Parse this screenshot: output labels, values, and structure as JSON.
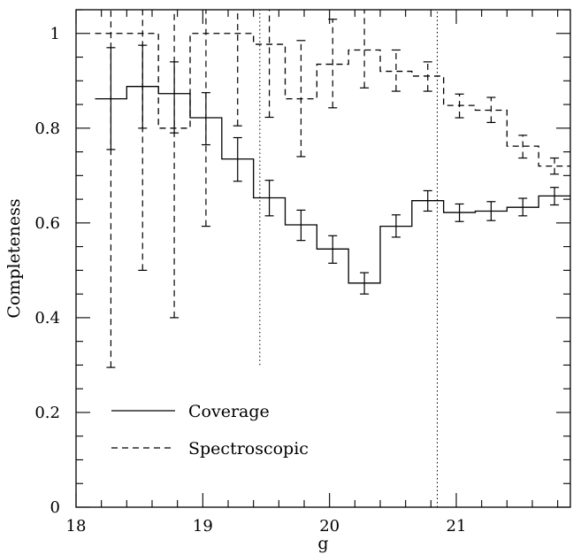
{
  "chart_data": {
    "type": "line",
    "xlabel": "g",
    "ylabel": "Completeness",
    "xlim": [
      18,
      21.9
    ],
    "ylim": [
      0,
      1.05
    ],
    "xticks": [
      18,
      19,
      20,
      21
    ],
    "yticks": [
      0,
      0.2,
      0.4,
      0.6,
      0.8,
      1
    ],
    "legend_position": "bottom-left",
    "grid": false,
    "vlines": [
      {
        "x": 19.45,
        "y_from": 0.3,
        "y_to": 1.05,
        "style": "dotted"
      },
      {
        "x": 20.85,
        "y_from": 0,
        "y_to": 1.05,
        "style": "dotted"
      }
    ],
    "series": [
      {
        "name": "Coverage",
        "style": "solid",
        "bin_edges": [
          18.15,
          18.4,
          18.65,
          18.9,
          19.15,
          19.4,
          19.65,
          19.9,
          20.15,
          20.4,
          20.65,
          20.9,
          21.15,
          21.4,
          21.65,
          21.9
        ],
        "x": [
          18.275,
          18.525,
          18.775,
          19.025,
          19.275,
          19.525,
          19.775,
          20.025,
          20.275,
          20.525,
          20.775,
          21.025,
          21.275,
          21.525,
          21.775
        ],
        "values": [
          0.862,
          0.888,
          0.873,
          0.822,
          0.735,
          0.653,
          0.596,
          0.545,
          0.473,
          0.593,
          0.647,
          0.622,
          0.625,
          0.633,
          0.657
        ],
        "err_low": [
          0.755,
          0.8,
          0.79,
          0.765,
          0.688,
          0.615,
          0.563,
          0.515,
          0.45,
          0.57,
          0.625,
          0.603,
          0.605,
          0.615,
          0.638
        ],
        "err_high": [
          0.97,
          0.975,
          0.94,
          0.875,
          0.78,
          0.69,
          0.627,
          0.573,
          0.495,
          0.617,
          0.668,
          0.64,
          0.645,
          0.652,
          0.675
        ]
      },
      {
        "name": "Spectroscopic",
        "style": "dashed",
        "bin_edges": [
          18.15,
          18.4,
          18.65,
          18.9,
          19.15,
          19.4,
          19.65,
          19.9,
          20.15,
          20.4,
          20.65,
          20.9,
          21.15,
          21.4,
          21.65,
          21.9
        ],
        "x": [
          18.275,
          18.525,
          18.775,
          19.025,
          19.275,
          19.525,
          19.775,
          20.025,
          20.275,
          20.525,
          20.775,
          21.025,
          21.275,
          21.525,
          21.775
        ],
        "values": [
          1.0,
          1.0,
          0.8,
          1.0,
          1.0,
          0.977,
          0.862,
          0.935,
          0.965,
          0.92,
          0.91,
          0.848,
          0.838,
          0.762,
          0.72
        ],
        "err_low": [
          0.295,
          0.5,
          0.4,
          0.593,
          0.805,
          0.823,
          0.74,
          0.843,
          0.885,
          0.878,
          0.878,
          0.822,
          0.812,
          0.737,
          0.703
        ],
        "err_high": [
          1.05,
          1.05,
          1.05,
          1.05,
          1.05,
          1.05,
          0.985,
          1.03,
          1.05,
          0.965,
          0.94,
          0.872,
          0.865,
          0.785,
          0.737
        ]
      }
    ]
  }
}
